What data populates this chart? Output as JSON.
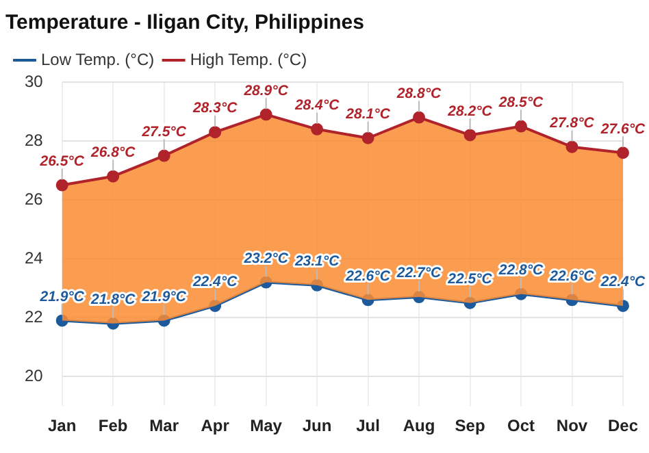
{
  "chart_data": {
    "type": "line",
    "title": "Temperature - Iligan City, Philippines",
    "categories": [
      "Jan",
      "Feb",
      "Mar",
      "Apr",
      "May",
      "Jun",
      "Jul",
      "Aug",
      "Sep",
      "Oct",
      "Nov",
      "Dec"
    ],
    "series": [
      {
        "name": "Low Temp. (°C)",
        "color": "#1c5a9c",
        "type": "line",
        "values": [
          21.9,
          21.8,
          21.9,
          22.4,
          23.2,
          23.1,
          22.6,
          22.7,
          22.5,
          22.8,
          22.6,
          22.4
        ],
        "value_labels": [
          "21.9°C",
          "21.8°C",
          "21.9°C",
          "22.4°C",
          "23.2°C",
          "23.1°C",
          "22.6°C",
          "22.7°C",
          "22.5°C",
          "22.8°C",
          "22.6°C",
          "22.4°C"
        ]
      },
      {
        "name": "High Temp. (°C)",
        "color": "#b0232a",
        "type": "area",
        "values": [
          26.5,
          26.8,
          27.5,
          28.3,
          28.9,
          28.4,
          28.1,
          28.8,
          28.2,
          28.5,
          27.8,
          27.6
        ],
        "value_labels": [
          "26.5°C",
          "26.8°C",
          "27.5°C",
          "28.3°C",
          "28.9°C",
          "28.4°C",
          "28.1°C",
          "28.8°C",
          "28.2°C",
          "28.5°C",
          "27.8°C",
          "27.6°C"
        ]
      }
    ],
    "ylim": [
      19,
      30
    ],
    "yticks": [
      20,
      22,
      24,
      26,
      28,
      30
    ],
    "grid": true,
    "legend": "top left",
    "marker": "circle",
    "line_style": "solid"
  }
}
